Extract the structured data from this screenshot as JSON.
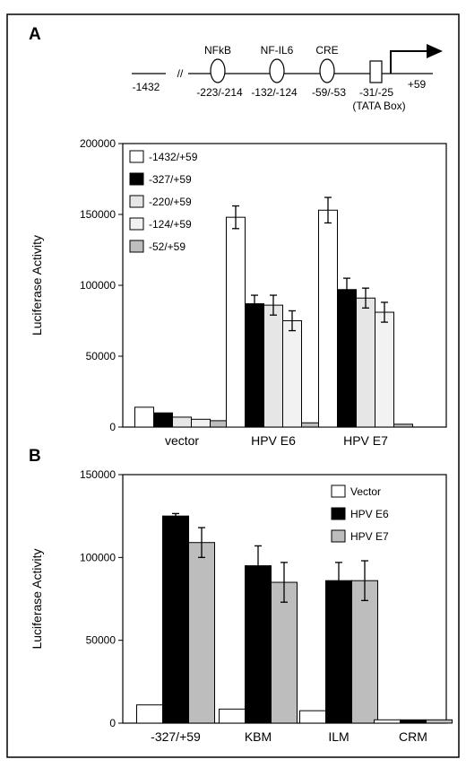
{
  "figure": {
    "panel_a_letter": "A",
    "panel_b_letter": "B"
  },
  "promoter": {
    "left_end": "-1432",
    "right_end": "+59",
    "break_mark": "//",
    "elements": [
      {
        "name": "NFkB",
        "position": "-223/-214",
        "shape": "oval"
      },
      {
        "name": "NF-IL6",
        "position": "-132/-124",
        "shape": "oval"
      },
      {
        "name": "CRE",
        "position": "-59/-53",
        "shape": "oval"
      },
      {
        "name": "",
        "position": "-31/-25",
        "sub": "(TATA Box)",
        "shape": "box"
      }
    ]
  },
  "chart_data": [
    {
      "type": "bar",
      "ylabel": "Luciferase Activity",
      "ylim": [
        0,
        200000
      ],
      "yticks": [
        "0",
        "50000",
        "100000",
        "150000",
        "200000"
      ],
      "categories": [
        "vector",
        "HPV E6",
        "HPV E7"
      ],
      "legend_position": "top-left",
      "series": [
        {
          "name": "-1432/+59",
          "color": "#ffffff",
          "values": [
            14000,
            148000,
            153000
          ],
          "errors": [
            0,
            8000,
            9000
          ]
        },
        {
          "name": "-327/+59",
          "color": "#000000",
          "values": [
            10000,
            87000,
            97000
          ],
          "errors": [
            0,
            6000,
            8000
          ]
        },
        {
          "name": "-220/+59",
          "color": "#e6e6e6",
          "values": [
            7000,
            86000,
            91000
          ],
          "errors": [
            0,
            7000,
            7000
          ]
        },
        {
          "name": "-124/+59",
          "color": "#f2f2f2",
          "values": [
            5500,
            75000,
            81000
          ],
          "errors": [
            0,
            7000,
            7000
          ]
        },
        {
          "name": "-52/+59",
          "color": "#bdbdbd",
          "values": [
            4500,
            3000,
            2000
          ],
          "errors": [
            0,
            0,
            0
          ]
        }
      ]
    },
    {
      "type": "bar",
      "ylabel": "Luciferase Activity",
      "ylim": [
        0,
        150000
      ],
      "yticks": [
        "0",
        "50000",
        "100000",
        "150000"
      ],
      "categories": [
        "-327/+59",
        "KBM",
        "ILM",
        "CRM"
      ],
      "legend_position": "top-right",
      "series": [
        {
          "name": "Vector",
          "color": "#ffffff",
          "values": [
            11000,
            8500,
            7500,
            2000
          ],
          "errors": [
            0,
            0,
            0,
            0
          ]
        },
        {
          "name": "HPV E6",
          "color": "#000000",
          "values": [
            125000,
            95000,
            86000,
            2000
          ],
          "errors": [
            1500,
            12000,
            11000,
            0
          ]
        },
        {
          "name": "HPV E7",
          "color": "#bdbdbd",
          "values": [
            109000,
            85000,
            86000,
            2000
          ],
          "errors": [
            9000,
            12000,
            12000,
            0
          ]
        }
      ]
    }
  ]
}
